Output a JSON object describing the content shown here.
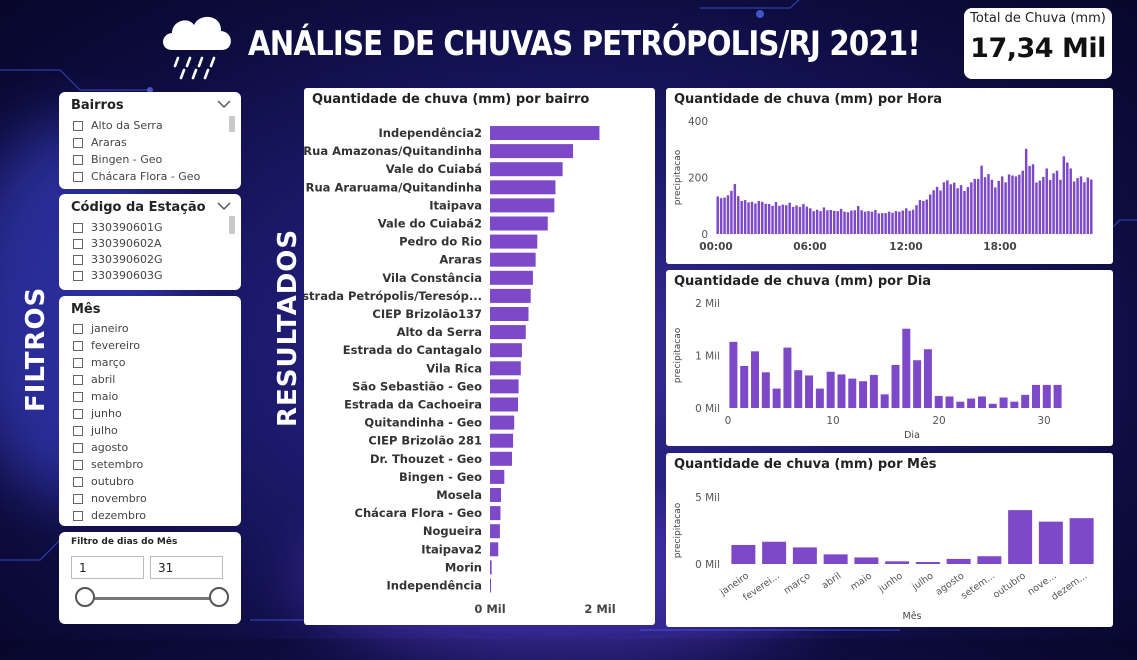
{
  "header": {
    "title": "ANÁLISE DE CHUVAS PETRÓPOLIS/RJ 2021!",
    "kpi_label": "Total de Chuva (mm)",
    "kpi_value": "17,34 Mil"
  },
  "side": {
    "filtros": "FILTROS",
    "resultados": "RESULTADOS"
  },
  "slicers": {
    "bairros": {
      "title": "Bairros",
      "items": [
        "Alto da Serra",
        "Araras",
        "Bingen - Geo",
        "Chácara Flora - Geo"
      ]
    },
    "estacao": {
      "title": "Código da Estação",
      "items": [
        "330390601G",
        "330390602A",
        "330390602G",
        "330390603G"
      ]
    },
    "mes": {
      "title": "Mês",
      "items": [
        "janeiro",
        "fevereiro",
        "março",
        "abril",
        "maio",
        "junho",
        "julho",
        "agosto",
        "setembro",
        "outubro",
        "novembro",
        "dezembro"
      ]
    },
    "dias": {
      "title": "Filtro de dias do Mês",
      "min_value": "1",
      "max_value": "31"
    }
  },
  "colors": {
    "bar": "#7d49c8",
    "accent_text": "#222222"
  },
  "chart_data": [
    {
      "type": "bar",
      "orientation": "horizontal",
      "title": "Quantidade de chuva (mm) por bairro",
      "categories": [
        "Independência2",
        "Rua Amazonas/Quitandinha",
        "Vale do Cuiabá",
        "Rua Araruama/Quitandinha",
        "Itaipava",
        "Vale do Cuiabá2",
        "Pedro do Rio",
        "Araras",
        "Vila Constância",
        "Estrada Petrópolis/Teresóp...",
        "CIEP Brizolão137",
        "Alto da Serra",
        "Estrada do Cantagalo",
        "Vila Rica",
        "São Sebastião - Geo",
        "Estrada da Cachoeira",
        "Quitandinha - Geo",
        "CIEP Brizolão 281",
        "Dr. Thouzet - Geo",
        "Bingen - Geo",
        "Mosela",
        "Chácara Flora - Geo",
        "Nogueira",
        "Itaipava2",
        "Morin",
        "Independência"
      ],
      "values": [
        1990,
        1510,
        1320,
        1190,
        1170,
        1050,
        860,
        830,
        780,
        740,
        700,
        650,
        580,
        560,
        520,
        510,
        440,
        420,
        400,
        260,
        200,
        190,
        180,
        150,
        30,
        10
      ],
      "xticks": [
        "0 Mil",
        "2 Mil"
      ],
      "xlim": [
        0,
        2000
      ]
    },
    {
      "type": "bar",
      "title": "Quantidade de chuva (mm) por Hora",
      "ylabel": "precipitacao",
      "yticks": [
        "0",
        "200",
        "400"
      ],
      "ylim": [
        0,
        400
      ],
      "xticks": [
        "00:00",
        "06:00",
        "12:00",
        "18:00"
      ],
      "values": [
        133,
        127,
        129,
        137,
        153,
        177,
        134,
        117,
        120,
        112,
        114,
        108,
        117,
        114,
        107,
        106,
        100,
        113,
        100,
        104,
        102,
        111,
        96,
        101,
        96,
        106,
        97,
        91,
        81,
        86,
        81,
        94,
        84,
        85,
        82,
        81,
        89,
        79,
        77,
        83,
        84,
        99,
        84,
        79,
        81,
        79,
        85,
        73,
        74,
        74,
        79,
        75,
        81,
        79,
        83,
        91,
        82,
        86,
        102,
        120,
        117,
        122,
        140,
        155,
        167,
        154,
        183,
        190,
        176,
        182,
        162,
        173,
        152,
        166,
        183,
        195,
        195,
        242,
        201,
        212,
        192,
        165,
        188,
        204,
        183,
        211,
        207,
        204,
        210,
        224,
        302,
        241,
        247,
        182,
        189,
        202,
        232,
        191,
        215,
        224,
        192,
        275,
        253,
        232,
        186,
        198,
        204,
        183,
        200,
        193
      ]
    },
    {
      "type": "bar",
      "title": "Quantidade de chuva (mm) por Dia",
      "xlabel": "Dia",
      "ylabel": "precipitacao",
      "yticks": [
        "0 Mil",
        "1 Mil",
        "2 Mil"
      ],
      "ylim": [
        0,
        2000
      ],
      "xticks": [
        "0",
        "10",
        "20",
        "30"
      ],
      "categories": [
        1,
        2,
        3,
        4,
        5,
        6,
        7,
        8,
        9,
        10,
        11,
        12,
        13,
        14,
        15,
        16,
        17,
        18,
        19,
        20,
        21,
        22,
        23,
        24,
        25,
        26,
        27,
        28,
        29,
        30,
        31
      ],
      "values": [
        1260,
        800,
        1080,
        680,
        370,
        1150,
        720,
        620,
        370,
        690,
        640,
        560,
        510,
        630,
        260,
        820,
        1510,
        910,
        1120,
        230,
        220,
        120,
        180,
        220,
        80,
        200,
        120,
        250,
        440,
        440,
        440
      ]
    },
    {
      "type": "bar",
      "title": "Quantidade de chuva (mm) por Mês",
      "xlabel": "Mês",
      "ylabel": "precipitacao",
      "yticks": [
        "0 Mil",
        "5 Mil"
      ],
      "ylim": [
        0,
        5000
      ],
      "categories": [
        "janeiro",
        "feverei...",
        "março",
        "abril",
        "maio",
        "junho",
        "julho",
        "agosto",
        "setem...",
        "outubro",
        "nove...",
        "dezem..."
      ],
      "values": [
        1420,
        1660,
        1240,
        720,
        490,
        200,
        150,
        380,
        580,
        4020,
        3160,
        3420
      ]
    }
  ]
}
